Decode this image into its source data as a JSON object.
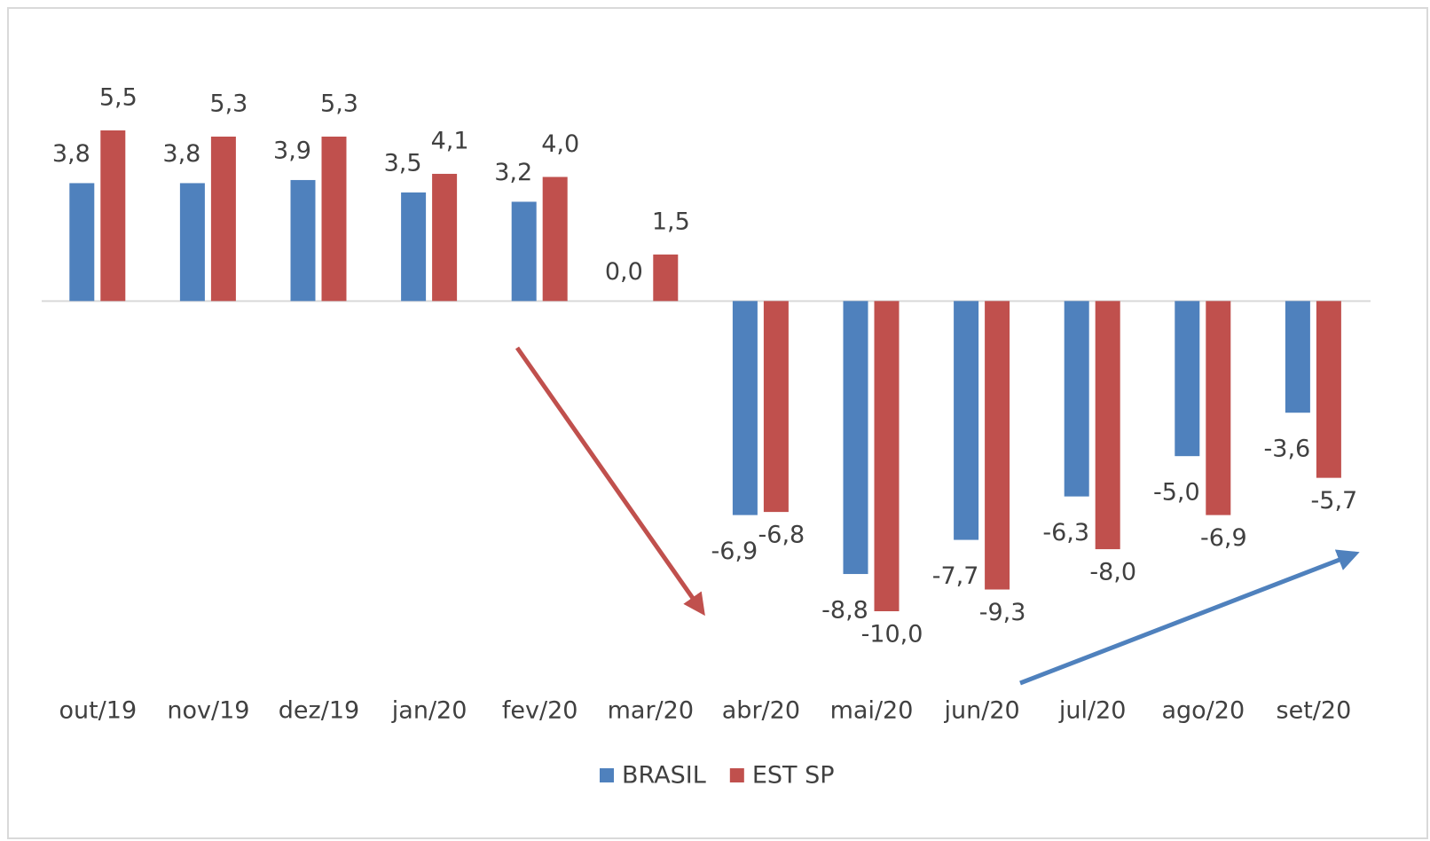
{
  "chart_data": {
    "type": "bar",
    "categories": [
      "out/19",
      "nov/19",
      "dez/19",
      "jan/20",
      "fev/20",
      "mar/20",
      "abr/20",
      "mai/20",
      "jun/20",
      "jul/20",
      "ago/20",
      "set/20"
    ],
    "series": [
      {
        "name": "BRASIL",
        "color": "#4f81bd",
        "values": [
          3.8,
          3.8,
          3.9,
          3.5,
          3.2,
          0.0,
          -6.9,
          -8.8,
          -7.7,
          -6.3,
          -5.0,
          -3.6
        ],
        "value_labels": [
          "3,8",
          "3,8",
          "3,9",
          "3,5",
          "3,2",
          "0,0",
          "-6,9",
          "-8,8",
          "-7,7",
          "-6,3",
          "-5,0",
          "-3,6"
        ]
      },
      {
        "name": "EST SP",
        "color": "#c0504d",
        "values": [
          5.5,
          5.3,
          5.3,
          4.1,
          4.0,
          1.5,
          -6.8,
          -10.0,
          -9.3,
          -8.0,
          -6.9,
          -5.7
        ],
        "value_labels": [
          "5,5",
          "5,3",
          "5,3",
          "4,1",
          "4,0",
          "1,5",
          "-6,8",
          "-10,0",
          "-9,3",
          "-8,0",
          "-6,9",
          "-5,7"
        ]
      }
    ]
  }
}
